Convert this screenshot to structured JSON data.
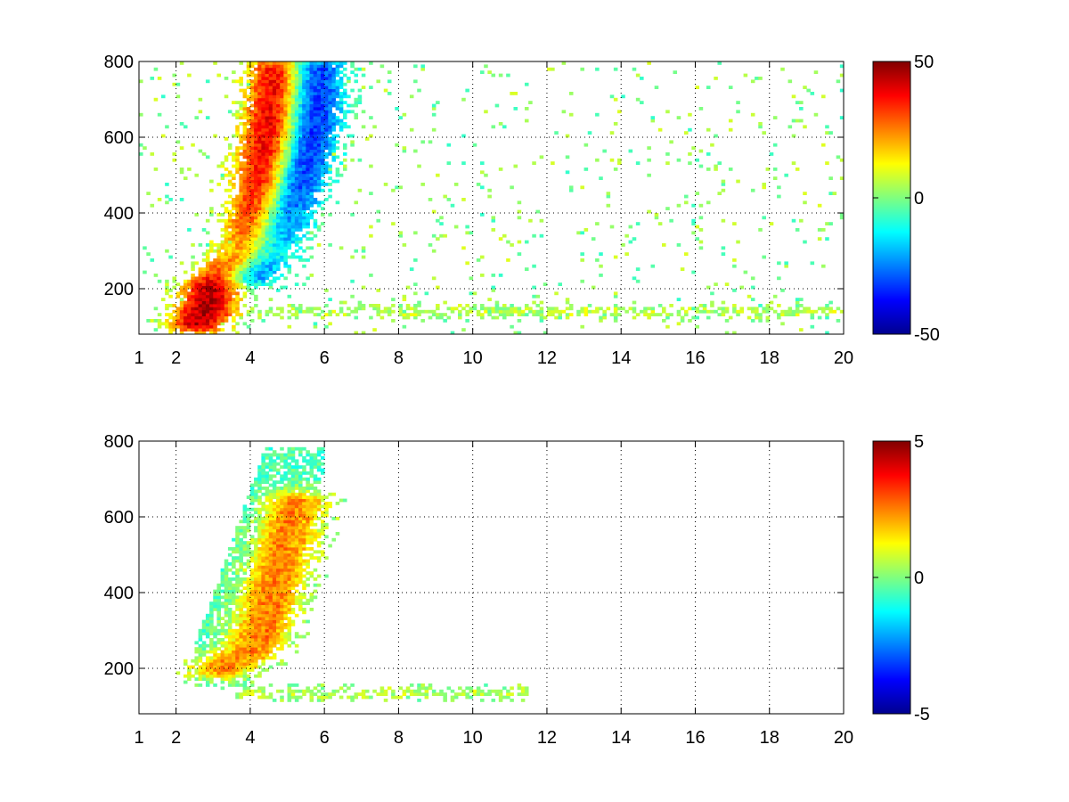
{
  "chart_data": [
    {
      "type": "heatmap",
      "title": "",
      "xlabel": "",
      "ylabel": "",
      "xlim": [
        1,
        20
      ],
      "ylim": [
        80,
        800
      ],
      "x_scale": "linear",
      "x_ticks": [
        1,
        2,
        4,
        6,
        8,
        10,
        12,
        14,
        16,
        18,
        20
      ],
      "x_tick_labels": [
        "1",
        "2",
        "4",
        "6",
        "8",
        "10",
        "12",
        "14",
        "16",
        "18",
        "20"
      ],
      "y_ticks": [
        200,
        400,
        600,
        800
      ],
      "y_tick_labels": [
        "200",
        "400",
        "600",
        "800"
      ],
      "grid": true,
      "colormap": "jet",
      "clim": [
        -50,
        50
      ],
      "colorbar_ticks": [
        -50,
        0,
        50
      ],
      "colorbar_tick_labels": [
        "-50",
        "0",
        "50"
      ],
      "nan_color": "#ffffff",
      "features": [
        {
          "shape": "ridge",
          "sign": "positive",
          "peak_value": 45,
          "path_xy": [
            [
              2.6,
              110
            ],
            [
              3.0,
              210
            ],
            [
              3.6,
              265
            ],
            [
              4.0,
              300
            ],
            [
              4.3,
              450
            ],
            [
              4.6,
              620
            ],
            [
              4.8,
              780
            ]
          ]
        },
        {
          "shape": "ridge",
          "sign": "negative",
          "peak_value": -40,
          "path_xy": [
            [
              4.0,
              240
            ],
            [
              4.6,
              340
            ],
            [
              5.2,
              480
            ],
            [
              5.6,
              620
            ],
            [
              5.7,
              780
            ]
          ]
        },
        {
          "shape": "band",
          "x_range": [
            3.0,
            20.0
          ],
          "y_center": 140,
          "value": 6
        }
      ]
    },
    {
      "type": "heatmap",
      "title": "",
      "xlabel": "",
      "ylabel": "",
      "xlim": [
        1,
        20
      ],
      "ylim": [
        80,
        800
      ],
      "x_scale": "linear",
      "x_ticks": [
        1,
        2,
        4,
        6,
        8,
        10,
        12,
        14,
        16,
        18,
        20
      ],
      "x_tick_labels": [
        "1",
        "2",
        "4",
        "6",
        "8",
        "10",
        "12",
        "14",
        "16",
        "18",
        "20"
      ],
      "y_ticks": [
        200,
        400,
        600,
        800
      ],
      "y_tick_labels": [
        "200",
        "400",
        "600",
        "800"
      ],
      "grid": true,
      "colormap": "jet",
      "clim": [
        -5,
        5
      ],
      "colorbar_ticks": [
        -5,
        0,
        5
      ],
      "colorbar_tick_labels": [
        "-5",
        "0",
        "5"
      ],
      "nan_color": "#ffffff",
      "features": [
        {
          "shape": "blob",
          "x_range": [
            2.5,
            6.0
          ],
          "y_range": [
            150,
            780
          ],
          "value": -0.5
        },
        {
          "shape": "ridge",
          "sign": "positive",
          "peak_value": 3,
          "path_xy": [
            [
              3.2,
              200
            ],
            [
              4.0,
              250
            ],
            [
              4.4,
              350
            ],
            [
              4.8,
              500
            ],
            [
              5.2,
              640
            ]
          ]
        },
        {
          "shape": "band",
          "x_range": [
            3.5,
            11.5
          ],
          "y_center": 135,
          "value": 0.5
        }
      ]
    }
  ]
}
